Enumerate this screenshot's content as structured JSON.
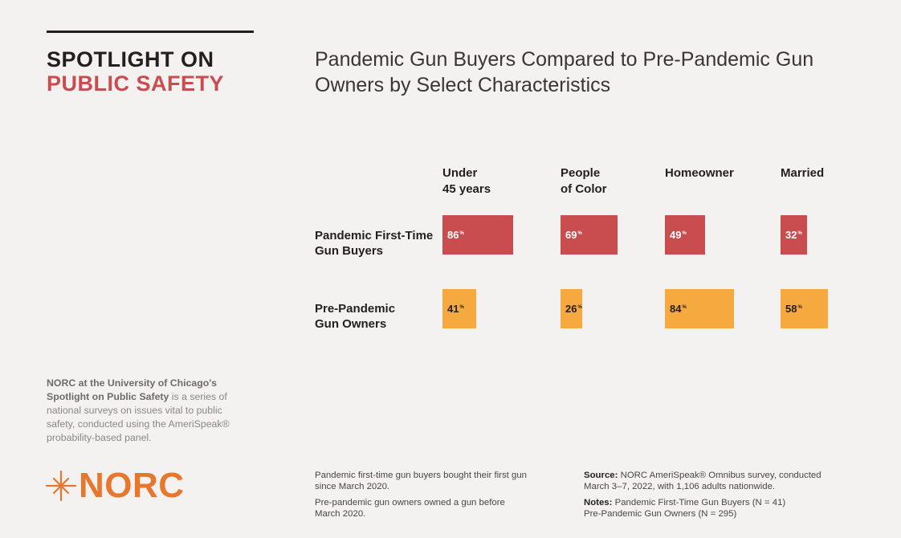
{
  "brand": {
    "line1": "SPOTLIGHT ON",
    "line2": "PUBLIC SAFETY"
  },
  "colors": {
    "first_time": "#c94d4f",
    "pre_pandemic": "#f5a93f",
    "brand_accent": "#c94d4f",
    "logo": "#e8772e"
  },
  "chart_data": {
    "type": "bar",
    "orientation": "horizontal",
    "title": "Pandemic Gun Buyers Compared to Pre-Pandemic Gun Owners by Select Characteristics",
    "categories": [
      "Under 45 years",
      "People of Color",
      "Homeowner",
      "Married"
    ],
    "categories_display": [
      {
        "line1": "Under",
        "line2": "45 years"
      },
      {
        "line1": "People",
        "line2": "of Color"
      },
      {
        "line1": "",
        "line2": "Homeowner"
      },
      {
        "line1": "",
        "line2": "Married"
      }
    ],
    "series": [
      {
        "name": "Pandemic First-Time Gun Buyers",
        "label_line1": "Pandemic First-Time",
        "label_line2": "Gun Buyers",
        "values": [
          86,
          69,
          49,
          32
        ],
        "labels": [
          "86",
          "69",
          "49",
          "32"
        ]
      },
      {
        "name": "Pre-Pandemic Gun Owners",
        "label_line1": "Pre-Pandemic",
        "label_line2": "Gun Owners",
        "values": [
          41,
          26,
          84,
          58
        ],
        "labels": [
          "41",
          "26",
          "84",
          "58"
        ]
      }
    ],
    "unit": "%",
    "xlim": [
      0,
      100
    ]
  },
  "about": {
    "bold": "NORC at the University of Chicago's Spotlight on Public Safety",
    "rest": " is a series of national surveys on issues vital to public safety, conducted using the AmeriSpeak® probability-based panel."
  },
  "logo": {
    "text": "NORC",
    "icon": "norc-star-icon"
  },
  "footnotes": {
    "def1": "Pandemic first-time gun buyers bought their first gun since March 2020.",
    "def2": "Pre-pandemic gun owners owned a gun before March 2020.",
    "source_label": "Source:",
    "source_text": " NORC AmeriSpeak® Omnibus survey, conducted March 3–7, 2022, with 1,106 adults nationwide.",
    "notes_label": "Notes:",
    "notes_line1": " Pandemic First-Time Gun Buyers (N = 41)",
    "notes_line2": "Pre-Pandemic Gun Owners (N = 295)"
  }
}
